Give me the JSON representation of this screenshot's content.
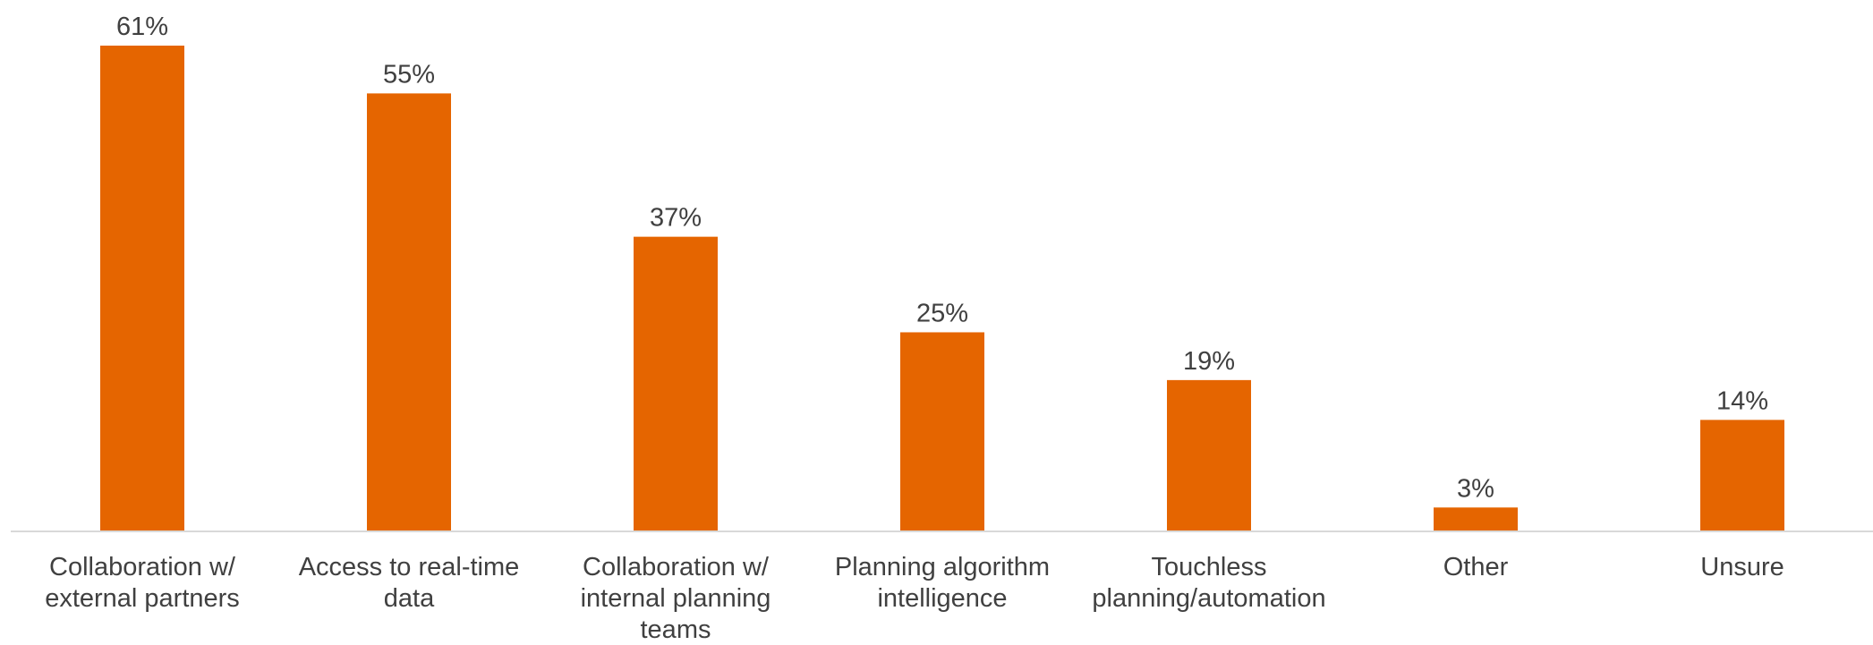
{
  "chart_data": {
    "type": "bar",
    "title": "",
    "xlabel": "",
    "ylabel": "",
    "categories": [
      [
        "Collaboration w/",
        "external partners"
      ],
      [
        "Access to real-time",
        "data"
      ],
      [
        "Collaboration w/",
        "internal planning",
        "teams"
      ],
      [
        "Planning algorithm",
        "intelligence"
      ],
      [
        "Touchless",
        "planning/automation"
      ],
      [
        "Other"
      ],
      [
        "Unsure"
      ]
    ],
    "values": [
      61,
      55,
      37,
      25,
      19,
      3,
      14
    ],
    "value_labels": [
      "61%",
      "55%",
      "37%",
      "25%",
      "19%",
      "3%",
      "14%"
    ],
    "unit": "%",
    "ylim": [
      0,
      61
    ],
    "grid": false,
    "legend": "none",
    "colors": {
      "bar": "#E56500",
      "axis": "#D9D9D9",
      "text": "#404040"
    }
  }
}
